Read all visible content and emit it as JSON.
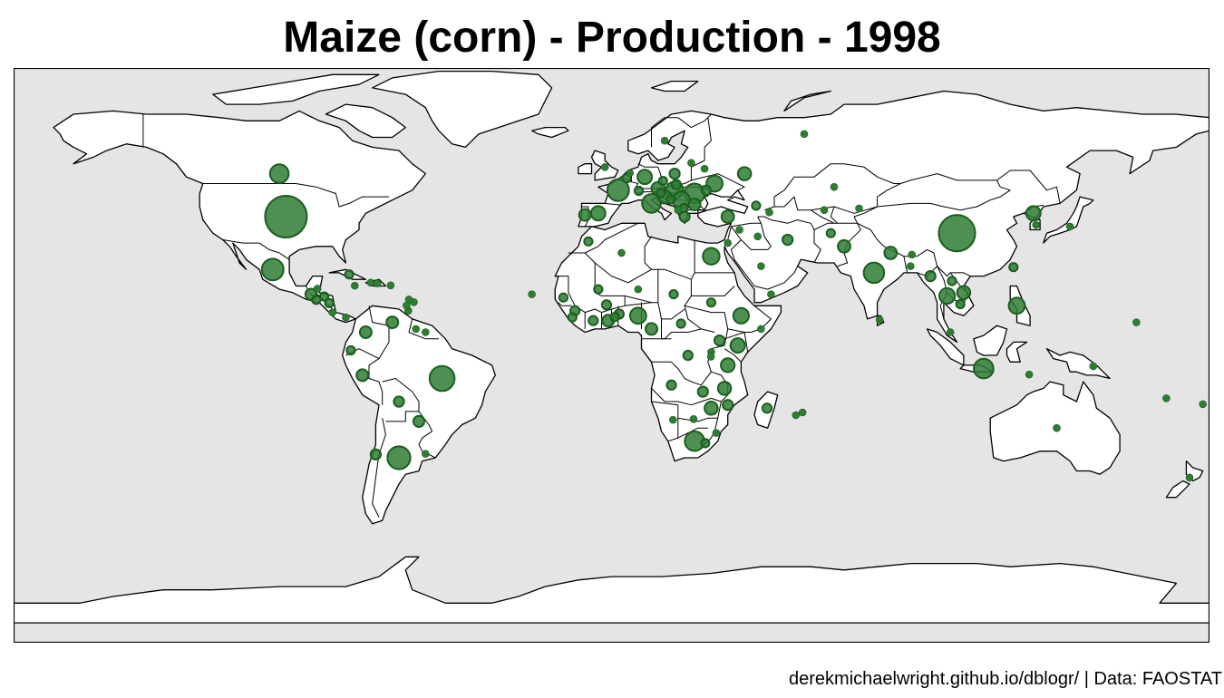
{
  "title": "Maize (corn) - Production - 1998",
  "caption": "derekmichaelwright.github.io/dblogr/ | Data: FAOSTAT",
  "colors": {
    "ocean": "#e5e5e5",
    "land": "#ffffff",
    "border": "#000000",
    "bubble_fill": "#2e7d32",
    "bubble_stroke": "#1b5e20"
  },
  "bubbles": [
    {
      "name": "United States",
      "lon": -98,
      "lat": 39,
      "size": 1.0
    },
    {
      "name": "China",
      "lon": 104,
      "lat": 34,
      "size": 0.76
    },
    {
      "name": "Brazil",
      "lon": -51,
      "lat": -10,
      "size": 0.36
    },
    {
      "name": "Mexico",
      "lon": -102,
      "lat": 23,
      "size": 0.27
    },
    {
      "name": "Argentina",
      "lon": -64,
      "lat": -34,
      "size": 0.3
    },
    {
      "name": "France",
      "lon": 2,
      "lat": 47,
      "size": 0.27
    },
    {
      "name": "India",
      "lon": 79,
      "lat": 22,
      "size": 0.24
    },
    {
      "name": "Romania",
      "lon": 25,
      "lat": 46,
      "size": 0.23
    },
    {
      "name": "Italy",
      "lon": 12,
      "lat": 43,
      "size": 0.2
    },
    {
      "name": "South Africa",
      "lon": 25,
      "lat": -29,
      "size": 0.22
    },
    {
      "name": "Indonesia",
      "lon": 112,
      "lat": -7,
      "size": 0.22
    },
    {
      "name": "Canada",
      "lon": -100,
      "lat": 52,
      "size": 0.2
    },
    {
      "name": "Hungary",
      "lon": 19,
      "lat": 47,
      "size": 0.17
    },
    {
      "name": "Serbia",
      "lon": 21,
      "lat": 44,
      "size": 0.17
    },
    {
      "name": "Ukraine",
      "lon": 31,
      "lat": 49,
      "size": 0.15
    },
    {
      "name": "Nigeria",
      "lon": 8,
      "lat": 9,
      "size": 0.15
    },
    {
      "name": "Egypt",
      "lon": 30,
      "lat": 27,
      "size": 0.16
    },
    {
      "name": "Philippines",
      "lon": 122,
      "lat": 12,
      "size": 0.15
    },
    {
      "name": "Ethiopia",
      "lon": 39,
      "lat": 9,
      "size": 0.14
    },
    {
      "name": "Thailand",
      "lon": 101,
      "lat": 15,
      "size": 0.14
    },
    {
      "name": "Spain",
      "lon": -4,
      "lat": 40,
      "size": 0.12
    },
    {
      "name": "Germany",
      "lon": 10,
      "lat": 51,
      "size": 0.12
    },
    {
      "name": "Austria",
      "lon": 14,
      "lat": 47.5,
      "size": 0.1
    },
    {
      "name": "Kenya",
      "lon": 38,
      "lat": 0,
      "size": 0.12
    },
    {
      "name": "Tanzania",
      "lon": 35,
      "lat": -6,
      "size": 0.11
    },
    {
      "name": "Malawi",
      "lon": 34,
      "lat": -13,
      "size": 0.1
    },
    {
      "name": "Zimbabwe",
      "lon": 30,
      "lat": -19,
      "size": 0.1
    },
    {
      "name": "Croatia",
      "lon": 16,
      "lat": 45,
      "size": 0.1
    },
    {
      "name": "Russia",
      "lon": 40,
      "lat": 52,
      "size": 0.1
    },
    {
      "name": "North Korea",
      "lon": 127,
      "lat": 40,
      "size": 0.12
    },
    {
      "name": "Vietnam",
      "lon": 106,
      "lat": 16,
      "size": 0.1
    },
    {
      "name": "Nepal",
      "lon": 84,
      "lat": 28,
      "size": 0.09
    },
    {
      "name": "Pakistan",
      "lon": 70,
      "lat": 30,
      "size": 0.09
    },
    {
      "name": "Turkey",
      "lon": 35,
      "lat": 39,
      "size": 0.09
    },
    {
      "name": "Portugal",
      "lon": -8,
      "lat": 39.5,
      "size": 0.08
    },
    {
      "name": "Bulgaria",
      "lon": 25,
      "lat": 42.7,
      "size": 0.08
    },
    {
      "name": "Ghana",
      "lon": -1,
      "lat": 7.5,
      "size": 0.08
    },
    {
      "name": "Cameroon",
      "lon": 12,
      "lat": 5,
      "size": 0.08
    },
    {
      "name": "Colombia",
      "lon": -74,
      "lat": 4,
      "size": 0.08
    },
    {
      "name": "Peru",
      "lon": -75,
      "lat": -9,
      "size": 0.08
    },
    {
      "name": "Venezuela",
      "lon": -66,
      "lat": 7,
      "size": 0.08
    },
    {
      "name": "Guatemala",
      "lon": -90.5,
      "lat": 15.5,
      "size": 0.07
    },
    {
      "name": "Paraguay",
      "lon": -58,
      "lat": -23,
      "size": 0.07
    },
    {
      "name": "Bolivia",
      "lon": -64,
      "lat": -17,
      "size": 0.06
    },
    {
      "name": "Chile",
      "lon": -71,
      "lat": -33,
      "size": 0.06
    },
    {
      "name": "Iran",
      "lon": 53,
      "lat": 32,
      "size": 0.06
    },
    {
      "name": "Myanmar",
      "lon": 96,
      "lat": 21,
      "size": 0.06
    },
    {
      "name": "Greece",
      "lon": 22,
      "lat": 39,
      "size": 0.06
    },
    {
      "name": "Poland",
      "lon": 19,
      "lat": 52,
      "size": 0.06
    },
    {
      "name": "Uganda",
      "lon": 32.5,
      "lat": 1.5,
      "size": 0.06
    },
    {
      "name": "Mozambique",
      "lon": 35,
      "lat": -18,
      "size": 0.06
    },
    {
      "name": "Zambia",
      "lon": 27.5,
      "lat": -14,
      "size": 0.06
    },
    {
      "name": "DR Congo",
      "lon": 23,
      "lat": -3,
      "size": 0.05
    },
    {
      "name": "Angola",
      "lon": 18,
      "lat": -12,
      "size": 0.05
    },
    {
      "name": "Benin",
      "lon": 2.3,
      "lat": 9.5,
      "size": 0.05
    },
    {
      "name": "Mali",
      "lon": -4,
      "lat": 17,
      "size": 0.04
    },
    {
      "name": "Burkina Faso",
      "lon": -1.5,
      "lat": 12.3,
      "size": 0.05
    },
    {
      "name": "Cote d'Ivoire",
      "lon": -5.5,
      "lat": 7.5,
      "size": 0.05
    },
    {
      "name": "Guinea",
      "lon": -11,
      "lat": 10.5,
      "size": 0.05
    },
    {
      "name": "Senegal",
      "lon": -14.5,
      "lat": 14.5,
      "size": 0.04
    },
    {
      "name": "Sierra Leone",
      "lon": -11.8,
      "lat": 8.5,
      "size": 0.04
    },
    {
      "name": "Togo",
      "lon": 1,
      "lat": 8.6,
      "size": 0.04
    },
    {
      "name": "Chad",
      "lon": 18.7,
      "lat": 15.5,
      "size": 0.04
    },
    {
      "name": "Sudan",
      "lon": 30,
      "lat": 13,
      "size": 0.04
    },
    {
      "name": "Central African Republic",
      "lon": 20.9,
      "lat": 6.6,
      "size": 0.04
    },
    {
      "name": "Niger",
      "lon": 8,
      "lat": 17,
      "size": 0.03
    },
    {
      "name": "Morocco",
      "lon": -7,
      "lat": 31.5,
      "size": 0.04
    },
    {
      "name": "Algeria",
      "lon": 3,
      "lat": 28,
      "size": 0.03
    },
    {
      "name": "Madagascar",
      "lon": 46.8,
      "lat": -19,
      "size": 0.05
    },
    {
      "name": "Rwanda",
      "lon": 30,
      "lat": -2,
      "size": 0.03
    },
    {
      "name": "Burundi",
      "lon": 29.9,
      "lat": -3.4,
      "size": 0.03
    },
    {
      "name": "Botswana",
      "lon": 24.7,
      "lat": -22.3,
      "size": 0.03
    },
    {
      "name": "Namibia",
      "lon": 18.5,
      "lat": -22.5,
      "size": 0.03
    },
    {
      "name": "Lesotho",
      "lon": 28.2,
      "lat": -29.6,
      "size": 0.04
    },
    {
      "name": "Swaziland",
      "lon": 31.5,
      "lat": -26.5,
      "size": 0.03
    },
    {
      "name": "Somalia",
      "lon": 45,
      "lat": 5,
      "size": 0.03
    },
    {
      "name": "Yemen",
      "lon": 48,
      "lat": 15.5,
      "size": 0.03
    },
    {
      "name": "Saudi Arabia",
      "lon": 45,
      "lat": 24,
      "size": 0.03
    },
    {
      "name": "Iraq",
      "lon": 44,
      "lat": 33,
      "size": 0.03
    },
    {
      "name": "Syria",
      "lon": 38.5,
      "lat": 35,
      "size": 0.03
    },
    {
      "name": "Israel",
      "lon": 35,
      "lat": 31,
      "size": 0.03
    },
    {
      "name": "Afghanistan",
      "lon": 66,
      "lat": 34,
      "size": 0.04
    },
    {
      "name": "Uzbekistan",
      "lon": 64,
      "lat": 41,
      "size": 0.03
    },
    {
      "name": "Kyrgyzstan",
      "lon": 74.5,
      "lat": 41.5,
      "size": 0.03
    },
    {
      "name": "Kazakhstan",
      "lon": 67,
      "lat": 48,
      "size": 0.03
    },
    {
      "name": "Georgia",
      "lon": 43.5,
      "lat": 42.3,
      "size": 0.04
    },
    {
      "name": "Azerbaijan",
      "lon": 47.5,
      "lat": 40.3,
      "size": 0.03
    },
    {
      "name": "Bangladesh",
      "lon": 90,
      "lat": 24,
      "size": 0.03
    },
    {
      "name": "Sri Lanka",
      "lon": 80.7,
      "lat": 7.8,
      "size": 0.03
    },
    {
      "name": "Bhutan",
      "lon": 90.4,
      "lat": 27.5,
      "size": 0.03
    },
    {
      "name": "Laos",
      "lon": 102.5,
      "lat": 19.5,
      "size": 0.04
    },
    {
      "name": "Cambodia",
      "lon": 105,
      "lat": 12.5,
      "size": 0.04
    },
    {
      "name": "Malaysia",
      "lon": 102,
      "lat": 4,
      "size": 0.03
    },
    {
      "name": "Timor-Leste",
      "lon": 125.7,
      "lat": -8.8,
      "size": 0.03
    },
    {
      "name": "Japan",
      "lon": 138,
      "lat": 36,
      "size": 0.03
    },
    {
      "name": "South Korea",
      "lon": 127.8,
      "lat": 36.5,
      "size": 0.03
    },
    {
      "name": "Taiwan",
      "lon": 121,
      "lat": 23.7,
      "size": 0.04
    },
    {
      "name": "Australia",
      "lon": 134,
      "lat": -25,
      "size": 0.03
    },
    {
      "name": "New Zealand",
      "lon": 174,
      "lat": -40,
      "size": 0.03
    },
    {
      "name": "Papua New Guinea",
      "lon": 145,
      "lat": -6.3,
      "size": 0.03
    },
    {
      "name": "Fiji",
      "lon": 178,
      "lat": -17.8,
      "size": 0.03
    },
    {
      "name": "Vanuatu",
      "lon": 167,
      "lat": -16,
      "size": 0.03
    },
    {
      "name": "Micronesia",
      "lon": 158,
      "lat": 7,
      "size": 0.03
    },
    {
      "name": "Cuba",
      "lon": -79,
      "lat": 21.5,
      "size": 0.04
    },
    {
      "name": "Haiti",
      "lon": -72.5,
      "lat": 19,
      "size": 0.03
    },
    {
      "name": "Dominican Republic",
      "lon": -70.5,
      "lat": 18.8,
      "size": 0.03
    },
    {
      "name": "Jamaica",
      "lon": -77.3,
      "lat": 18.1,
      "size": 0.03
    },
    {
      "name": "Honduras",
      "lon": -86.5,
      "lat": 14.8,
      "size": 0.04
    },
    {
      "name": "Nicaragua",
      "lon": -85,
      "lat": 12.8,
      "size": 0.04
    },
    {
      "name": "El Salvador",
      "lon": -88.9,
      "lat": 13.8,
      "size": 0.04
    },
    {
      "name": "Costa Rica",
      "lon": -84,
      "lat": 10,
      "size": 0.03
    },
    {
      "name": "Panama",
      "lon": -80,
      "lat": 8.5,
      "size": 0.03
    },
    {
      "name": "Belize",
      "lon": -88.5,
      "lat": 17.2,
      "size": 0.03
    },
    {
      "name": "Ecuador",
      "lon": -78.5,
      "lat": -1.5,
      "size": 0.04
    },
    {
      "name": "Uruguay",
      "lon": -56,
      "lat": -32.8,
      "size": 0.03
    },
    {
      "name": "Guyana",
      "lon": -58.9,
      "lat": 5,
      "size": 0.03
    },
    {
      "name": "Suriname",
      "lon": -56,
      "lat": 4,
      "size": 0.03
    },
    {
      "name": "Trinidad and Tobago",
      "lon": -61.2,
      "lat": 10.5,
      "size": 0.03
    },
    {
      "name": "Puerto Rico",
      "lon": -66.5,
      "lat": 18.2,
      "size": 0.03
    },
    {
      "name": "Barbados",
      "lon": -59.5,
      "lat": 13.1,
      "size": 0.03
    },
    {
      "name": "Saint Lucia",
      "lon": -61,
      "lat": 13.9,
      "size": 0.03
    },
    {
      "name": "Grenada",
      "lon": -61.7,
      "lat": 12.1,
      "size": 0.03
    },
    {
      "name": "Cape Verde",
      "lon": -24,
      "lat": 15.5,
      "size": 0.03
    },
    {
      "name": "Mauritius",
      "lon": 57.5,
      "lat": -20.3,
      "size": 0.03
    },
    {
      "name": "Reunion",
      "lon": 55.5,
      "lat": -21.1,
      "size": 0.03
    },
    {
      "name": "Belgium",
      "lon": 4.5,
      "lat": 50.6,
      "size": 0.04
    },
    {
      "name": "Netherlands",
      "lon": 5.5,
      "lat": 52.2,
      "size": 0.03
    },
    {
      "name": "Switzerland",
      "lon": 8.2,
      "lat": 46.8,
      "size": 0.04
    },
    {
      "name": "Slovakia",
      "lon": 19.5,
      "lat": 48.7,
      "size": 0.05
    },
    {
      "name": "Czech Republic",
      "lon": 15.5,
      "lat": 49.8,
      "size": 0.04
    },
    {
      "name": "Slovenia",
      "lon": 14.8,
      "lat": 46.1,
      "size": 0.04
    },
    {
      "name": "Bosnia",
      "lon": 17.8,
      "lat": 44.2,
      "size": 0.04
    },
    {
      "name": "Macedonia",
      "lon": 21.7,
      "lat": 41.6,
      "size": 0.04
    },
    {
      "name": "Albania",
      "lon": 20,
      "lat": 41,
      "size": 0.03
    },
    {
      "name": "Moldova",
      "lon": 28.5,
      "lat": 47,
      "size": 0.05
    },
    {
      "name": "Belarus",
      "lon": 28,
      "lat": 53.5,
      "size": 0.03
    },
    {
      "name": "Lithuania",
      "lon": 24,
      "lat": 55.3,
      "size": 0.03
    },
    {
      "name": "United Kingdom",
      "lon": -2,
      "lat": 54,
      "size": 0.03
    },
    {
      "name": "Sweden",
      "lon": 16,
      "lat": 62,
      "size": 0.03
    },
    {
      "name": "Russia (Far North)",
      "lon": 58,
      "lat": 64,
      "size": 0.03
    }
  ]
}
